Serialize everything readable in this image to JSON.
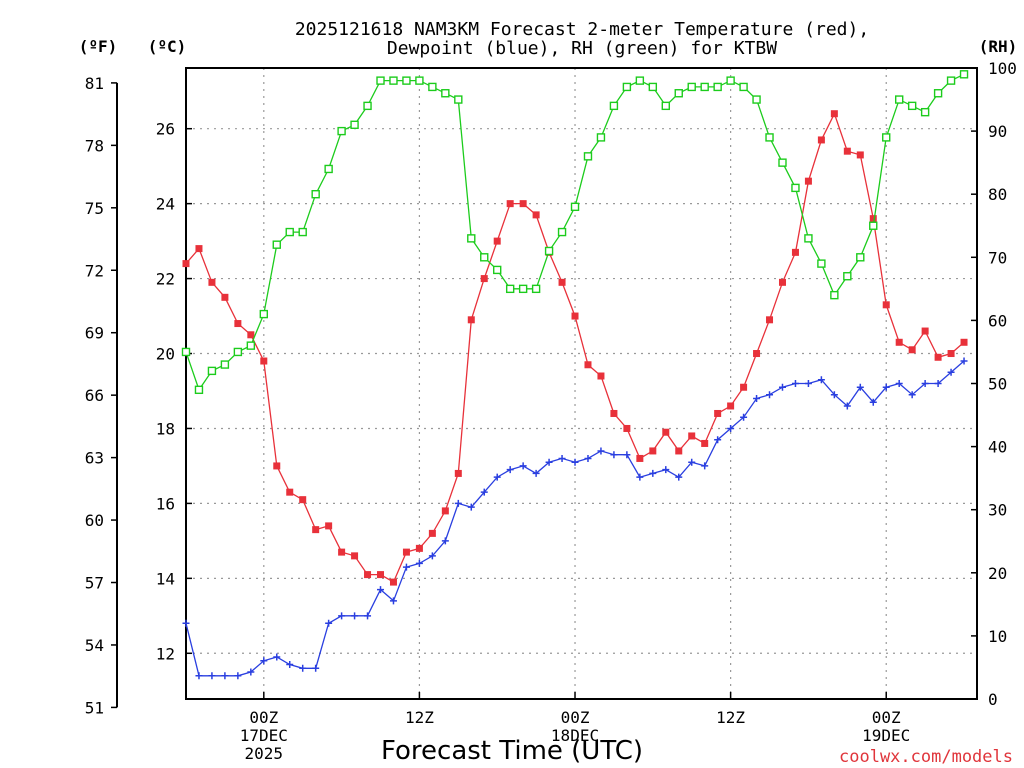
{
  "chart_data": {
    "type": "line",
    "title_line1": "2025121618 NAM3KM Forecast 2-meter Temperature (red),",
    "title_line2": "Dewpoint (blue), RH (green) for KTBW",
    "xlabel": "Forecast Time (UTC)",
    "credit": "coolwx.com/models",
    "units": {
      "fahrenheit": "(ºF)",
      "celsius": "(ºC)",
      "rh": "(RH)"
    },
    "x_hours_range": [
      0,
      61
    ],
    "celsius_range": [
      10.78,
      27.62
    ],
    "rh_range": [
      0,
      100
    ],
    "fahrenheit_ticks": [
      "51",
      "54",
      "57",
      "60",
      "63",
      "66",
      "69",
      "72",
      "75",
      "78",
      "81"
    ],
    "celsius_ticks": [
      "12",
      "14",
      "16",
      "18",
      "20",
      "22",
      "24",
      "26"
    ],
    "rh_ticks": [
      "0",
      "10",
      "20",
      "30",
      "40",
      "50",
      "60",
      "70",
      "80",
      "90",
      "100"
    ],
    "x_ticks": [
      {
        "hour": 6,
        "lines": [
          "00Z",
          "17DEC",
          "2025"
        ]
      },
      {
        "hour": 18,
        "lines": [
          "12Z"
        ]
      },
      {
        "hour": 30,
        "lines": [
          "00Z",
          "18DEC"
        ]
      },
      {
        "hour": 42,
        "lines": [
          "12Z"
        ]
      },
      {
        "hour": 54,
        "lines": [
          "00Z",
          "19DEC"
        ]
      }
    ],
    "colors": {
      "temperature": "#e8313a",
      "dewpoint": "#2a3fe0",
      "rh": "#1ccc1c",
      "grid": "#999999"
    },
    "series": [
      {
        "name": "Temperature (°C)",
        "values": [
          22.4,
          22.8,
          21.9,
          21.5,
          20.8,
          20.5,
          19.8,
          17.0,
          16.3,
          16.1,
          15.3,
          15.4,
          14.7,
          14.6,
          14.1,
          14.1,
          13.9,
          14.7,
          14.8,
          15.2,
          15.8,
          16.8,
          20.9,
          22.0,
          23.0,
          24.0,
          24.0,
          23.7,
          22.7,
          21.9,
          21.0,
          19.7,
          19.4,
          18.4,
          18.0,
          17.2,
          17.4,
          17.9,
          17.4,
          17.8,
          17.6,
          18.4,
          18.6,
          19.1,
          20.0,
          20.9,
          21.9,
          22.7,
          24.6,
          25.7,
          26.4,
          25.4,
          25.3,
          23.6,
          21.3,
          20.3,
          20.1,
          20.6,
          19.9,
          20.0,
          20.3
        ]
      },
      {
        "name": "Dewpoint (°C)",
        "values": [
          12.8,
          11.4,
          11.4,
          11.4,
          11.4,
          11.5,
          11.8,
          11.9,
          11.7,
          11.6,
          11.6,
          12.8,
          13.0,
          13.0,
          13.0,
          13.7,
          13.4,
          14.3,
          14.4,
          14.6,
          15.0,
          16.0,
          15.9,
          16.3,
          16.7,
          16.9,
          17.0,
          16.8,
          17.1,
          17.2,
          17.1,
          17.2,
          17.4,
          17.3,
          17.3,
          16.7,
          16.8,
          16.9,
          16.7,
          17.1,
          17.0,
          17.7,
          18.0,
          18.3,
          18.8,
          18.9,
          19.1,
          19.2,
          19.2,
          19.3,
          18.9,
          18.6,
          19.1,
          18.7,
          19.1,
          19.2,
          18.9,
          19.2,
          19.2,
          19.5,
          19.8
        ]
      },
      {
        "name": "RH (%)",
        "values": [
          55,
          49,
          52,
          53,
          55,
          56,
          61,
          72,
          74,
          74,
          80,
          84,
          90,
          91,
          94,
          98,
          98,
          98,
          98,
          97,
          96,
          95,
          73,
          70,
          68,
          65,
          65,
          65,
          71,
          74,
          78,
          86,
          89,
          94,
          97,
          98,
          97,
          94,
          96,
          97,
          97,
          97,
          98,
          97,
          95,
          89,
          85,
          81,
          73,
          69,
          64,
          67,
          70,
          75,
          89,
          95,
          94,
          93,
          96,
          98,
          99
        ]
      }
    ]
  }
}
